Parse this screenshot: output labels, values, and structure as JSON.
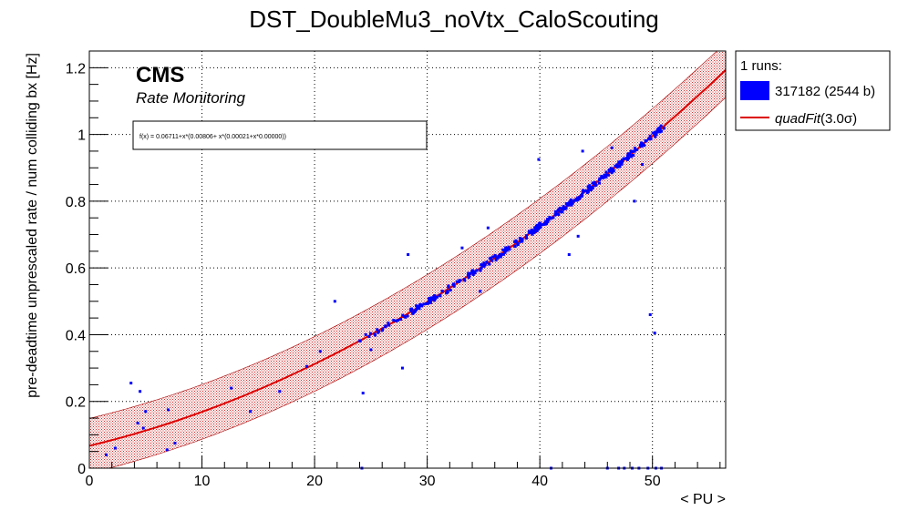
{
  "chart_data": {
    "type": "scatter",
    "title": "DST_DoubleMu3_noVtx_CaloScouting",
    "xlabel": "< PU >",
    "ylabel": "pre-deadtime unprescaled rate / num colliding bx [Hz]",
    "xlim": [
      0,
      56.5
    ],
    "ylim": [
      0,
      1.25
    ],
    "x_ticks": [
      "0",
      "10",
      "20",
      "30",
      "40",
      "50"
    ],
    "y_ticks": [
      "0",
      "0.2",
      "0.4",
      "0.6",
      "0.8",
      "1",
      "1.2"
    ],
    "grid": true,
    "legend_position": "outside-top-right",
    "cms_label": "CMS",
    "cms_sublabel": "Rate Monitoring",
    "fit_formula_text": "f(x) = 0.06711+x*(0.00806+ x*(0.00021+x*0.00000))",
    "fit": {
      "name": "quadFit(3.0σ)",
      "name_prefix": "quadFit",
      "name_suffix": "(3.0σ)",
      "a0": 0.06711,
      "a1": 0.00806,
      "a2": 0.00021,
      "band_halfwidth": 0.082,
      "x_range": [
        0,
        56.5
      ],
      "color": "#dd0000"
    },
    "legend_header": "1 runs:",
    "series": [
      {
        "name": "317182 (2544 b)",
        "color": "#0000ff",
        "trend_x_range": [
          24.0,
          51.2
        ],
        "trend_count": 360,
        "outliers": [
          [
            1.5,
            0.04
          ],
          [
            2.3,
            0.06
          ],
          [
            3.7,
            0.255
          ],
          [
            4.3,
            0.135
          ],
          [
            4.5,
            0.23
          ],
          [
            4.8,
            0.12
          ],
          [
            5.0,
            0.17
          ],
          [
            6.9,
            0.055
          ],
          [
            7.0,
            0.175
          ],
          [
            7.6,
            0.075
          ],
          [
            12.6,
            0.24
          ],
          [
            14.3,
            0.17
          ],
          [
            16.9,
            0.23
          ],
          [
            19.3,
            0.305
          ],
          [
            20.5,
            0.35
          ],
          [
            21.8,
            0.5
          ],
          [
            24.3,
            0.225
          ],
          [
            25.0,
            0.355
          ],
          [
            27.8,
            0.3
          ],
          [
            28.3,
            0.64
          ],
          [
            33.1,
            0.66
          ],
          [
            34.7,
            0.53
          ],
          [
            35.4,
            0.72
          ],
          [
            39.9,
            0.925
          ],
          [
            42.6,
            0.64
          ],
          [
            43.8,
            0.95
          ],
          [
            43.4,
            0.695
          ],
          [
            45.6,
            0.87
          ],
          [
            46.4,
            0.96
          ],
          [
            48.4,
            0.8
          ],
          [
            49.1,
            0.91
          ],
          [
            49.8,
            0.46
          ],
          [
            50.2,
            0.405
          ],
          [
            24.2,
            0.0
          ],
          [
            46.0,
            0.0
          ],
          [
            47.0,
            0.0
          ],
          [
            47.5,
            0.0
          ],
          [
            48.2,
            0.0
          ],
          [
            48.8,
            0.0
          ],
          [
            49.6,
            0.0
          ],
          [
            50.3,
            0.0
          ],
          [
            50.8,
            0.0
          ],
          [
            41.0,
            0.0
          ]
        ]
      }
    ]
  }
}
